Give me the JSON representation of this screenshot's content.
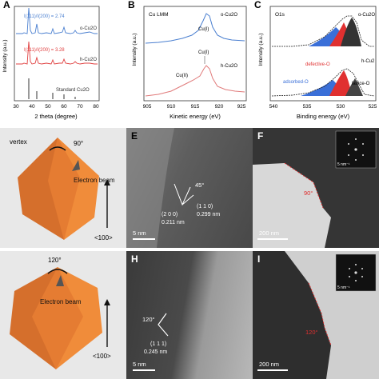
{
  "panels": {
    "A": {
      "label": "A",
      "xlabel": "2 theta (degree)",
      "ylabel": "Intensity (a.u.)",
      "xticks": [
        "30",
        "40",
        "50",
        "60",
        "70",
        "80"
      ],
      "ratio_top": "I(111)/I(200) = 2.74",
      "ratio_mid": "I(111)/I(200) = 3.28",
      "curve_top": "o-Cu2O",
      "curve_mid": "h-Cu2O",
      "standard": "Standard Cu2O",
      "colors": {
        "top": "#4a7fd0",
        "mid": "#e04040",
        "std": "#333333"
      }
    },
    "B": {
      "label": "B",
      "title": "Cu LMM",
      "xlabel": "Kinetic energy (eV)",
      "ylabel": "Intensity (a.u.)",
      "xticks": [
        "905",
        "910",
        "915",
        "920",
        "925"
      ],
      "curve_top": "o-Cu2O",
      "curve_mid": "h-Cu2O",
      "peak_cu1": "Cu(I)",
      "peak_cu2": "Cu(II)",
      "peak_cu1_lower": "Cu(I)",
      "colors": {
        "top": "#4a7fd0",
        "mid": "#e07a7a"
      }
    },
    "C": {
      "label": "C",
      "title": "O1s",
      "xlabel": "Binding energy (eV)",
      "ylabel": "Intensity (a.u.)",
      "xticks": [
        "540",
        "535",
        "530",
        "525"
      ],
      "curve_top": "o-Cu2O",
      "curve_mid": "h-Cu2",
      "defective": "defective-O",
      "adsorbed": "adsorbed-O",
      "lattice": "lattice-O",
      "colors": {
        "adsorbed": "#3a6fd8",
        "defective": "#e03030",
        "lattice": "#333333"
      }
    },
    "D": {
      "vertex": "vertex",
      "angle": "90°",
      "beam": "Electron beam",
      "direction": "<100>"
    },
    "E": {
      "label": "E",
      "angle": "45°",
      "plane_a": "(1 1 0)",
      "dspace_a": "0.299 nm",
      "plane_b": "(2 0 0)",
      "dspace_b": "0.211 nm",
      "scale": "5 nm"
    },
    "F": {
      "label": "F",
      "angle": "90°",
      "inset_scale": "5 nm⁻¹",
      "scale": "200 nm"
    },
    "G": {
      "angle": "120°",
      "beam": "Electron beam",
      "direction": "<100>"
    },
    "H": {
      "label": "H",
      "angle": "120°",
      "plane": "(1 1 1)",
      "dspace": "0.245 nm",
      "scale": "5 nm"
    },
    "I": {
      "label": "I",
      "angle": "120°",
      "inset_scale": "5 nm⁻¹",
      "scale": "200 nm"
    }
  }
}
